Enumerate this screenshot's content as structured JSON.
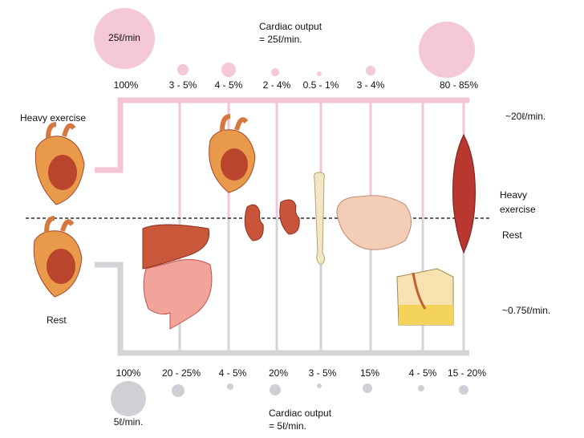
{
  "top": {
    "circle_label": "25ℓ/min",
    "cardiac_output": [
      "Cardiac output",
      "= 25ℓ/min."
    ],
    "percentages": [
      "100%",
      "3 - 5%",
      "4 - 5%",
      "2 - 4%",
      "0.5 - 1%",
      "3 - 4%",
      "80 - 85%"
    ]
  },
  "bottom": {
    "circle_label": "5ℓ/min.",
    "cardiac_output": [
      "Cardiac output",
      "= 5ℓ/min."
    ],
    "percentages": [
      "100%",
      "20 - 25%",
      "4 - 5%",
      "20%",
      "3 - 5%",
      "15%",
      "4 - 5%",
      "15 - 20%"
    ]
  },
  "left": {
    "heavy": "Heavy exercise",
    "rest": "Rest"
  },
  "right": {
    "flow_exercise": "~20ℓ/min.",
    "heavy": [
      "Heavy",
      "exercise"
    ],
    "rest": "Rest",
    "flow_rest": "~0.75ℓ/min."
  }
}
